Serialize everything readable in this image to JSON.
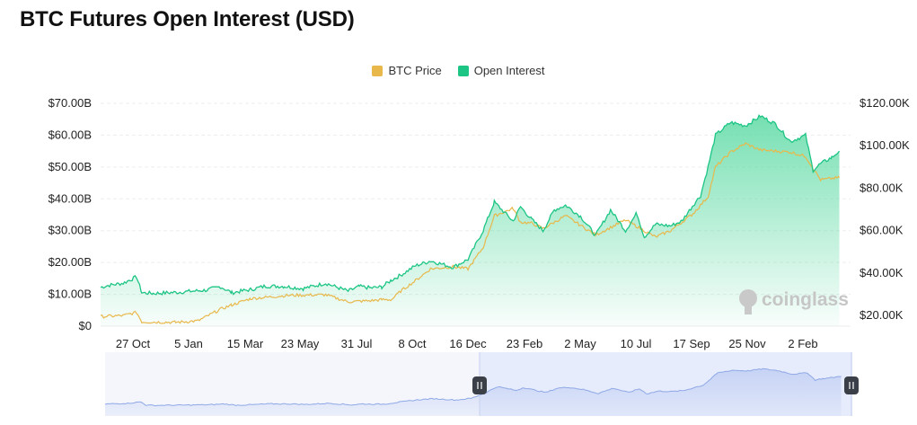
{
  "title": "BTC Futures Open Interest (USD)",
  "legend": {
    "items": [
      {
        "label": "BTC Price",
        "color": "#E8B84B",
        "icon": "square-swatch"
      },
      {
        "label": "Open Interest",
        "color": "#1DC585",
        "icon": "square-swatch"
      }
    ]
  },
  "watermark": "coinglass",
  "colors": {
    "open_interest_line": "#1DC585",
    "open_interest_fill_top": "#5DDAA4",
    "btc_price_line": "#E8B84B",
    "navigator_line": "#8FA8E6",
    "navigator_selected_bg": "#E6ECFB",
    "grid": "#EDEDED"
  },
  "chart_data": {
    "type": "area",
    "title": "BTC Futures Open Interest (USD)",
    "x_tick_labels": [
      "27 Oct",
      "5 Jan",
      "15 Mar",
      "23 May",
      "31 Jul",
      "8 Oct",
      "16 Dec",
      "23 Feb",
      "2 May",
      "10 Jul",
      "17 Sep",
      "25 Nov",
      "2 Feb"
    ],
    "y_left": {
      "label": "",
      "ticks": [
        "$0",
        "$10.00B",
        "$20.00B",
        "$30.00B",
        "$40.00B",
        "$50.00B",
        "$60.00B",
        "$70.00B"
      ],
      "range": [
        0,
        70
      ]
    },
    "y_right": {
      "label": "",
      "ticks": [
        "$20.00K",
        "$40.00K",
        "$60.00K",
        "$80.00K",
        "$100.00K",
        "$120.00K"
      ],
      "range": [
        15000,
        120000
      ]
    },
    "grid": "horizontal",
    "legend_position": "top-center",
    "series": [
      {
        "name": "Open Interest",
        "axis": "left",
        "unit": "USD billions",
        "x": [
          0,
          10,
          30,
          48,
          55,
          70,
          100,
          140,
          160,
          175,
          200,
          220,
          245,
          270,
          300,
          330,
          345,
          360,
          375,
          388,
          400,
          420,
          440,
          470,
          490,
          510,
          525,
          550,
          560,
          575,
          590,
          605,
          620,
          640,
          660,
          680,
          700,
          715,
          725,
          740,
          760,
          775,
          790,
          800,
          810,
          820,
          840,
          860,
          880,
          900,
          920,
          940,
          950,
          960,
          975,
          985
        ],
        "values": [
          12.2,
          12.8,
          13.5,
          15.5,
          10.5,
          10.3,
          10.6,
          11.3,
          12.4,
          10.5,
          11.5,
          12.6,
          12.5,
          11.8,
          13.5,
          11.0,
          12.5,
          12.0,
          12.3,
          14.5,
          16.0,
          19.0,
          20.5,
          18.5,
          21.0,
          30.0,
          39.0,
          33.0,
          37.5,
          33.5,
          30.0,
          36.5,
          38.0,
          34.5,
          28.5,
          36.5,
          30.0,
          35.5,
          28.0,
          32.0,
          31.5,
          33.0,
          38.0,
          41.0,
          50.0,
          60.0,
          64.0,
          63.0,
          66.0,
          63.5,
          58.0,
          60.0,
          49.0,
          51.0,
          53.0,
          55.0
        ]
      },
      {
        "name": "BTC Price",
        "axis": "right",
        "unit": "USD",
        "x": [
          0,
          30,
          48,
          55,
          100,
          130,
          160,
          175,
          200,
          250,
          300,
          330,
          360,
          375,
          388,
          400,
          420,
          440,
          470,
          490,
          510,
          525,
          550,
          560,
          575,
          590,
          620,
          660,
          700,
          740,
          760,
          790,
          810,
          820,
          840,
          860,
          880,
          920,
          940,
          960,
          985
        ],
        "values": [
          19500,
          20000,
          21500,
          17000,
          16800,
          17500,
          23000,
          25000,
          28000,
          29500,
          29800,
          26500,
          27000,
          27500,
          27500,
          31500,
          36500,
          42000,
          43000,
          42000,
          52000,
          67000,
          70500,
          64000,
          63500,
          61000,
          67000,
          58000,
          65000,
          57000,
          60000,
          68000,
          76000,
          90000,
          97000,
          101000,
          98000,
          97000,
          95000,
          84000,
          85000
        ]
      }
    ],
    "navigator": {
      "type": "line",
      "selected_range": "16 Dec – 2 Feb"
    }
  }
}
